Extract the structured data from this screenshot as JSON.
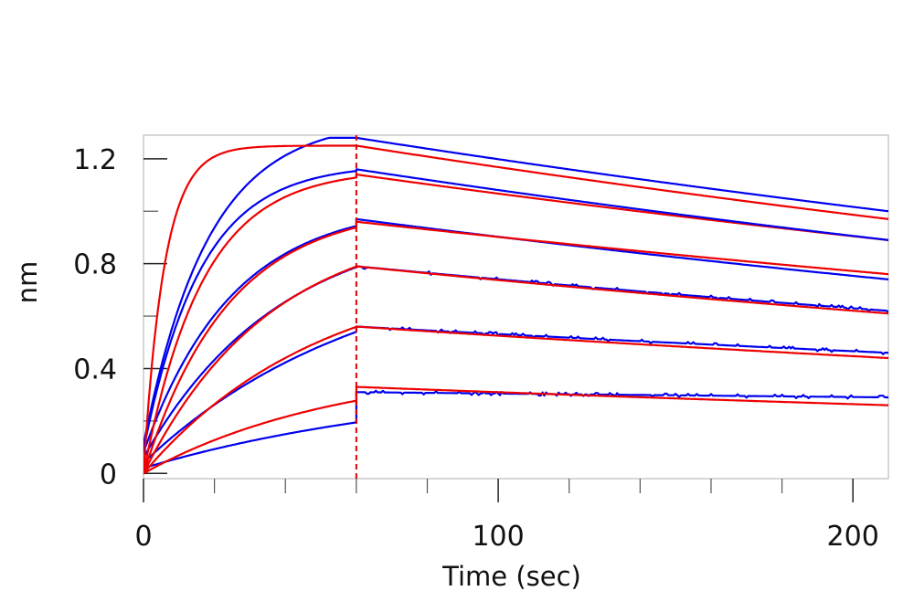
{
  "chart_data": {
    "type": "line",
    "title": "",
    "xlabel": "Time (sec)",
    "ylabel": "nm",
    "xlim": [
      0,
      210
    ],
    "ylim": [
      -0.02,
      1.29
    ],
    "x_ticks_major": [
      0,
      100,
      200
    ],
    "x_tick_labels": [
      "0",
      "100",
      "200"
    ],
    "x_ticks_minor": [
      20,
      40,
      60,
      80,
      120,
      140,
      160,
      180
    ],
    "y_ticks_major": [
      0,
      0.4,
      0.8,
      1.2
    ],
    "y_tick_labels": [
      "0",
      "0.4",
      "0.8",
      "1.2"
    ],
    "y_ticks_minor": [
      0.2,
      0.6,
      1.0
    ],
    "grid": false,
    "legend": "none",
    "association_end_marker_x": 60,
    "marker_color": "#e00000",
    "colors": {
      "measured": "#0000ee",
      "fit": "#ee0000",
      "frame": "#c8c8c8"
    },
    "phase_switch_x": 60,
    "x_end": 210,
    "series": [
      {
        "role": "measured",
        "color": "#0000ee",
        "start": 0.02,
        "plateau": 0.36,
        "kobs": 0.012,
        "peak": 0.31,
        "end": 0.29,
        "noisy": true
      },
      {
        "role": "fit",
        "color": "#ee0000",
        "start": 0.0,
        "plateau": 0.42,
        "kobs": 0.018,
        "peak": 0.33,
        "end": 0.26
      },
      {
        "role": "measured",
        "color": "#0000ee",
        "start": 0.04,
        "plateau": 0.85,
        "kobs": 0.016,
        "peak": 0.56,
        "end": 0.46,
        "noisy": true
      },
      {
        "role": "fit",
        "color": "#ee0000",
        "start": 0.0,
        "plateau": 0.8,
        "kobs": 0.02,
        "peak": 0.56,
        "end": 0.44
      },
      {
        "role": "measured",
        "color": "#0000ee",
        "start": 0.06,
        "plateau": 0.98,
        "kobs": 0.026,
        "peak": 0.79,
        "end": 0.62,
        "noisy": true
      },
      {
        "role": "fit",
        "color": "#ee0000",
        "start": 0.0,
        "plateau": 0.97,
        "kobs": 0.028,
        "peak": 0.79,
        "end": 0.61
      },
      {
        "role": "measured",
        "color": "#0000ee",
        "start": 0.08,
        "plateau": 1.03,
        "kobs": 0.04,
        "peak": 0.97,
        "end": 0.74
      },
      {
        "role": "fit",
        "color": "#ee0000",
        "start": 0.0,
        "plateau": 1.02,
        "kobs": 0.042,
        "peak": 0.96,
        "end": 0.76
      },
      {
        "role": "fit",
        "color": "#ee0000",
        "start": 0.0,
        "plateau": 1.16,
        "kobs": 0.06,
        "peak": 1.14,
        "end": 0.89
      },
      {
        "role": "measured",
        "color": "#0000ee",
        "start": 0.09,
        "plateau": 1.18,
        "kobs": 0.062,
        "peak": 1.16,
        "end": 0.89
      },
      {
        "role": "measured",
        "color": "#0000ee",
        "start": 0.11,
        "plateau": 1.35,
        "kobs": 0.055,
        "peak": 1.28,
        "end": 1.0
      },
      {
        "role": "fit",
        "color": "#ee0000",
        "start": 0.0,
        "plateau": 1.25,
        "kobs": 0.17,
        "peak": 1.25,
        "end": 0.97
      }
    ]
  }
}
